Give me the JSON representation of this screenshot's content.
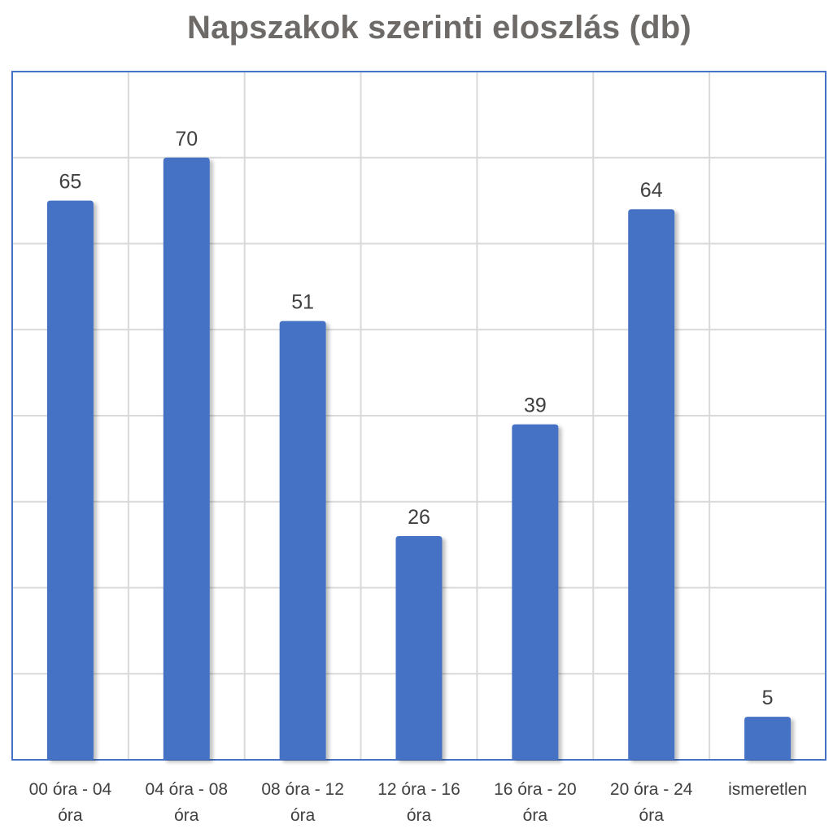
{
  "chart_data": {
    "type": "bar",
    "title": "Napszakok szerinti eloszlás (db)",
    "xlabel": "",
    "ylabel": "",
    "categories": [
      [
        "00 óra - 04",
        "óra"
      ],
      [
        "04 óra - 08",
        "óra"
      ],
      [
        "08 óra - 12",
        "óra"
      ],
      [
        "12 óra - 16",
        "óra"
      ],
      [
        "16 óra - 20",
        "óra"
      ],
      [
        "20 óra - 24",
        "óra"
      ],
      [
        "ismeretlen"
      ]
    ],
    "values": [
      65,
      70,
      51,
      26,
      39,
      64,
      5
    ],
    "ylim": [
      0,
      80
    ],
    "grid": true,
    "legend": "none",
    "bar_color": "#4472c4",
    "frame_color": "#4472c4",
    "grid_color": "#d9d9d9"
  }
}
